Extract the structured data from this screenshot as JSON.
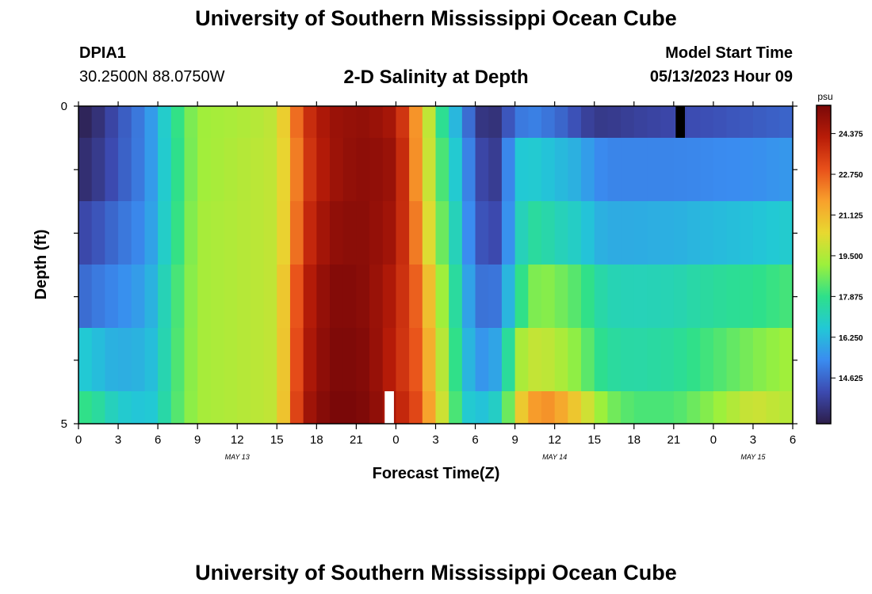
{
  "header": {
    "title": "University of Southern Mississippi Ocean Cube",
    "station_id": "DPIA1",
    "coordinates": "30.2500N  88.0750W",
    "subtitle": "2-D Salinity at Depth",
    "model_start_label": "Model Start Time",
    "model_start_value": "05/13/2023 Hour 09"
  },
  "footer": {
    "title": "University of Southern Mississippi Ocean Cube"
  },
  "chart_data": {
    "type": "heatmap",
    "title": "2-D Salinity at Depth",
    "xlabel": "Forecast Time(Z)",
    "ylabel": "Depth (ft)",
    "x_ticks": [
      "0",
      "3",
      "6",
      "9",
      "12",
      "15",
      "18",
      "21",
      "0",
      "3",
      "6",
      "9",
      "12",
      "15",
      "18",
      "21",
      "0",
      "3",
      "6"
    ],
    "date_labels": [
      {
        "label": "MAY 13",
        "at_tick": 4
      },
      {
        "label": "MAY 14",
        "at_tick": 12
      },
      {
        "label": "MAY 15",
        "at_tick": 17
      }
    ],
    "y_tick_labels": [
      "0",
      "5"
    ],
    "ylim": [
      0,
      5
    ],
    "colorbar": {
      "unit": "psu",
      "range": [
        12.8,
        25.5
      ],
      "ticks": [
        "24.375",
        "22.750",
        "21.125",
        "19.500",
        "17.875",
        "16.250",
        "14.625"
      ],
      "tick_values": [
        24.375,
        22.75,
        21.125,
        19.5,
        17.875,
        16.25,
        14.625
      ],
      "colors": [
        "#2d1e4a",
        "#3c4ab0",
        "#3a8cf0",
        "#22c8d6",
        "#2ee08a",
        "#9cf03c",
        "#e8d830",
        "#f8a02c",
        "#e8501a",
        "#b81c08",
        "#7a0808"
      ]
    },
    "depth_rows": [
      "0-0.5 ft",
      "0.5-1.5 ft",
      "1.5-2.5 ft",
      "2.5-3.5 ft",
      "3.5-4.5 ft",
      "4.5-5 ft"
    ],
    "hour_keys": [
      0,
      1,
      3,
      5,
      6,
      7,
      9,
      13,
      15,
      16,
      17,
      19,
      21,
      22,
      24,
      26,
      27,
      28,
      29,
      30,
      31,
      32,
      33,
      34,
      35,
      36,
      38,
      39,
      40,
      42,
      45,
      48,
      51,
      54
    ],
    "salinity": [
      [
        12.9,
        13.1,
        14.2,
        15.2,
        16.1,
        17.5,
        19.2,
        19.5,
        19.8,
        21.5,
        23.5,
        24.8,
        25.0,
        25.0,
        24.5,
        21.0,
        18.5,
        17.0,
        15.5,
        14.0,
        13.0,
        13.8,
        14.8,
        15.2,
        15.0,
        14.8,
        14.0,
        13.6,
        13.6,
        13.8,
        14.0,
        14.2,
        14.4,
        14.6
      ],
      [
        13.2,
        13.4,
        14.3,
        15.2,
        16.1,
        17.4,
        19.2,
        19.6,
        19.8,
        21.2,
        23.3,
        24.7,
        25.1,
        25.1,
        24.8,
        21.0,
        18.8,
        17.6,
        15.8,
        14.5,
        13.4,
        14.0,
        16.5,
        16.8,
        16.6,
        16.4,
        16.0,
        15.4,
        15.2,
        15.2,
        15.2,
        15.3,
        15.4,
        15.6
      ],
      [
        13.9,
        14.1,
        14.8,
        15.4,
        16.2,
        17.5,
        19.3,
        19.6,
        19.8,
        21.3,
        23.6,
        25.0,
        25.2,
        25.1,
        24.6,
        21.5,
        19.0,
        18.2,
        16.0,
        14.7,
        13.8,
        14.3,
        16.6,
        17.6,
        17.5,
        17.2,
        16.8,
        16.2,
        16.0,
        16.0,
        16.1,
        16.3,
        16.5,
        16.8
      ],
      [
        14.6,
        14.9,
        15.3,
        15.8,
        16.5,
        17.8,
        19.3,
        19.6,
        19.8,
        21.8,
        24.0,
        25.3,
        25.3,
        25.1,
        24.2,
        22.2,
        19.8,
        18.6,
        16.5,
        15.1,
        14.6,
        15.2,
        17.2,
        18.6,
        19.0,
        18.8,
        18.2,
        17.6,
        17.2,
        17.1,
        17.2,
        17.6,
        17.8,
        18.2
      ],
      [
        16.8,
        16.5,
        16.0,
        16.2,
        16.6,
        17.9,
        19.3,
        19.6,
        19.8,
        21.9,
        24.2,
        25.4,
        25.4,
        25.2,
        24.0,
        22.5,
        20.2,
        19.0,
        16.8,
        15.6,
        15.5,
        16.2,
        19.0,
        19.8,
        19.8,
        19.6,
        18.8,
        18.0,
        17.6,
        17.4,
        17.6,
        18.2,
        18.8,
        19.3
      ],
      [
        18.0,
        17.8,
        16.8,
        16.5,
        16.8,
        18.0,
        19.3,
        19.6,
        19.8,
        22.0,
        24.5,
        25.5,
        25.5,
        25.3,
        24.3,
        22.8,
        20.5,
        19.4,
        17.0,
        16.4,
        16.6,
        17.2,
        20.0,
        21.5,
        22.0,
        21.8,
        20.5,
        19.5,
        18.8,
        18.2,
        18.2,
        19.0,
        20.0,
        19.5
      ]
    ],
    "markers": [
      {
        "color": "#000000",
        "hour": 45,
        "row": 0
      },
      {
        "color": "#ffffff",
        "hour": 23,
        "row": 5
      }
    ]
  }
}
